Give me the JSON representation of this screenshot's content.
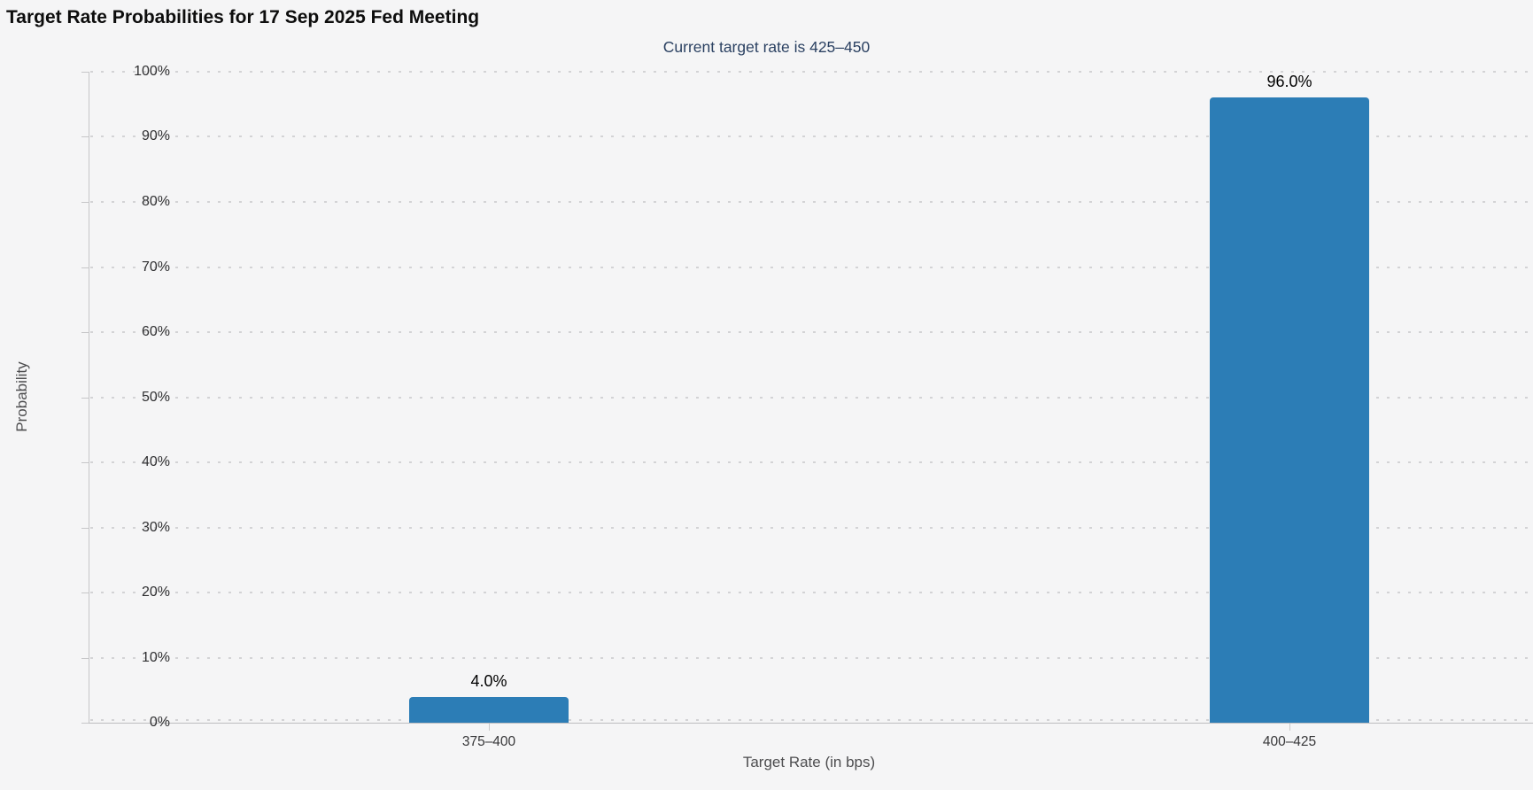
{
  "header": {
    "title": "Target Rate Probabilities for 17 Sep 2025 Fed Meeting",
    "subtitle": "Current target rate is 425–450"
  },
  "chart_data": {
    "type": "bar",
    "title": "Target Rate Probabilities for 17 Sep 2025 Fed Meeting",
    "subtitle": "Current target rate is 425–450",
    "current_target_rate": "425–450",
    "categories": [
      "375–400",
      "400–425"
    ],
    "values": [
      4.0,
      96.0
    ],
    "data_labels": [
      "4.0%",
      "96.0%"
    ],
    "xlabel": "Target Rate (in bps)",
    "ylabel": "Probability",
    "ylim": [
      0,
      100
    ],
    "ytick_step": 10,
    "ytick_labels": [
      "0%",
      "10%",
      "20%",
      "30%",
      "40%",
      "50%",
      "60%",
      "70%",
      "80%",
      "90%",
      "100%"
    ],
    "grid": "dotted horizontal gridlines, on",
    "legend": "none",
    "bar_color": "#2c7db6",
    "background_color": "#f5f5f6",
    "subtitle_color": "#2b4162"
  }
}
